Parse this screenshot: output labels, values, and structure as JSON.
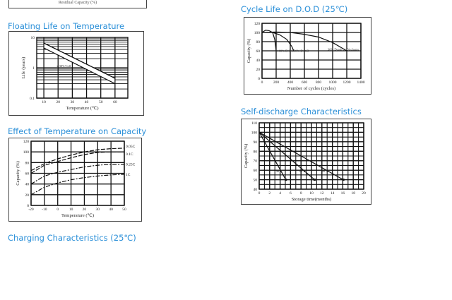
{
  "top_partial_label": "Residual Capacity (%)",
  "sections": {
    "floating": "Floating Life on Temperature",
    "cycle": "Cycle Life on D.O.D (25℃)",
    "self": "Self-discharge Characteristics",
    "effect": "Effect of Temperature on Capacity",
    "charging": "Charging Characteristics (25℃)"
  },
  "chart_data": [
    {
      "id": "floating",
      "type": "line",
      "xlabel": "Temperature (℃)",
      "ylabel": "Life (years)",
      "yscale": "log",
      "xlim": [
        5,
        69
      ],
      "ylim": [
        0.1,
        10
      ],
      "xticks": [
        10,
        20,
        30,
        40,
        50,
        60
      ],
      "yticks": [
        0.1,
        1,
        10
      ],
      "ytick_labels": [
        "0.1",
        "1",
        "10"
      ],
      "grid": true,
      "series": [
        {
          "x": [
            10,
            60
          ],
          "values": [
            6.5,
            0.45
          ]
        },
        {
          "x": [
            10,
            60
          ],
          "values": [
            4.5,
            0.3
          ]
        }
      ],
      "annotations": [
        {
          "text": "2.30V/Cell",
          "x": 19,
          "y": 1.05
        }
      ]
    },
    {
      "id": "cycle",
      "type": "line",
      "xlabel": "Number of cycles (cycles)",
      "ylabel": "Capacity (%)",
      "xlim": [
        0,
        1400
      ],
      "ylim": [
        0,
        120
      ],
      "xticks": [
        0,
        200,
        400,
        600,
        800,
        1000,
        1200,
        1400
      ],
      "yticks": [
        0,
        20,
        40,
        60,
        80,
        100,
        120
      ],
      "grid": true,
      "series": [
        {
          "name": "100% D.O.D",
          "x": [
            0,
            50,
            100,
            150,
            180,
            200
          ],
          "values": [
            100,
            105,
            104,
            100,
            85,
            60
          ]
        },
        {
          "name": "50% D.O.D",
          "x": [
            150,
            250,
            350,
            420,
            450
          ],
          "values": [
            100,
            95,
            85,
            70,
            60
          ]
        },
        {
          "name": "30% Depth of Discharge",
          "x": [
            0,
            200,
            400,
            600,
            800,
            1000,
            1200
          ],
          "values": [
            100,
            101,
            100,
            96,
            90,
            78,
            60
          ]
        }
      ],
      "annotations": [
        {
          "text": "100% D.O.D",
          "x": 215,
          "y": 58
        },
        {
          "text": "50% D.O.D",
          "x": 450,
          "y": 58
        },
        {
          "text": "30% Depth of Discharge",
          "x": 930,
          "y": 61
        }
      ]
    },
    {
      "id": "self",
      "type": "line",
      "xlabel": "Storage time(months)",
      "ylabel": "Capacity (%)",
      "xlim": [
        0,
        20
      ],
      "ylim": [
        40,
        110
      ],
      "xticks": [
        0,
        2,
        4,
        6,
        8,
        10,
        12,
        14,
        16,
        18,
        20
      ],
      "yticks": [
        40,
        50,
        60,
        70,
        80,
        90,
        100,
        110
      ],
      "grid": true,
      "markers": true,
      "series": [
        {
          "name": "40℃",
          "x": [
            0,
            5.1
          ],
          "values": [
            100,
            50
          ]
        },
        {
          "name": "30℃",
          "x": [
            0,
            10.6
          ],
          "values": [
            100,
            50
          ]
        },
        {
          "name": "20℃",
          "x": [
            0,
            16.1
          ],
          "values": [
            100,
            50
          ]
        }
      ],
      "annotations": [
        {
          "text": "40℃",
          "x": 3.2,
          "y": 58
        },
        {
          "text": "30℃",
          "x": 7.6,
          "y": 58
        },
        {
          "text": "20℃",
          "x": 12,
          "y": 58
        }
      ]
    },
    {
      "id": "effect",
      "type": "line",
      "xlabel": "Temperature (℃)",
      "ylabel": "Capacity (%)",
      "xlim": [
        -20,
        50
      ],
      "ylim": [
        0,
        120
      ],
      "xticks": [
        -20,
        -10,
        0,
        10,
        20,
        30,
        40,
        50
      ],
      "yticks": [
        0,
        20,
        40,
        60,
        80,
        100,
        120
      ],
      "grid": true,
      "x": [
        -20,
        -10,
        0,
        10,
        20,
        30,
        40,
        50
      ],
      "series": [
        {
          "name": "0.05C",
          "values": [
            65,
            78,
            87,
            94,
            100,
            104,
            106,
            107
          ]
        },
        {
          "name": "0.1C",
          "values": [
            60,
            75,
            82,
            89,
            95,
            99,
            100,
            100
          ]
        },
        {
          "name": "0.25C",
          "values": [
            40,
            55,
            62,
            67,
            72,
            75,
            77,
            77
          ]
        },
        {
          "name": "1C",
          "values": [
            20,
            34,
            42,
            48,
            52,
            55,
            57,
            58
          ]
        }
      ]
    }
  ]
}
